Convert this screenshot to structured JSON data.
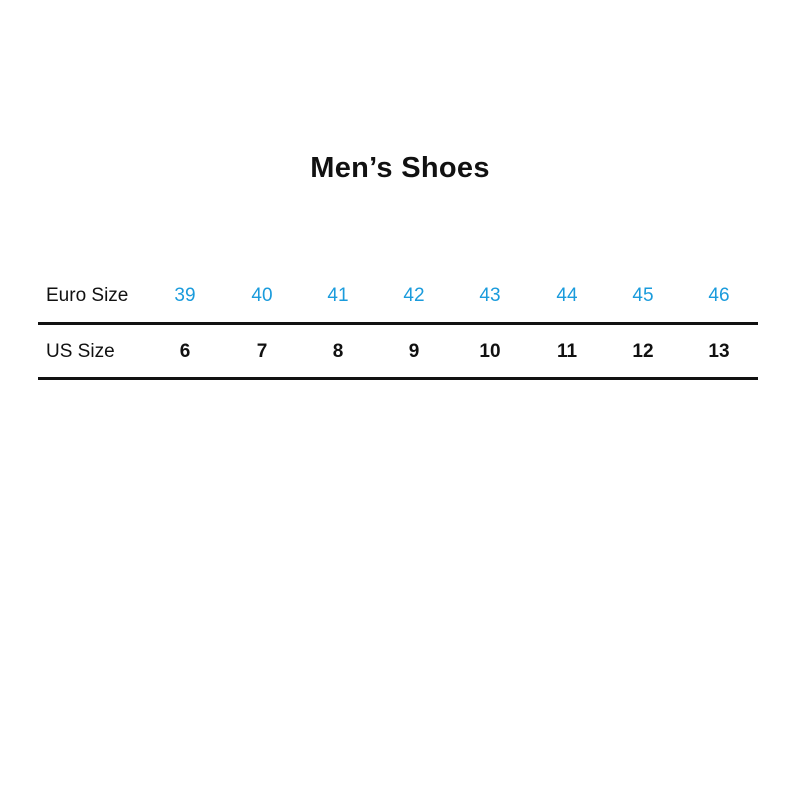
{
  "title": "Men’s Shoes",
  "table": {
    "rows": [
      {
        "label": "Euro Size",
        "values": [
          "39",
          "40",
          "41",
          "42",
          "43",
          "44",
          "45",
          "46"
        ]
      },
      {
        "label": "US Size",
        "values": [
          "6",
          "7",
          "8",
          "9",
          "10",
          "11",
          "12",
          "13"
        ]
      }
    ]
  },
  "colors": {
    "euro_value": "#1a9bdc",
    "text": "#111111"
  }
}
